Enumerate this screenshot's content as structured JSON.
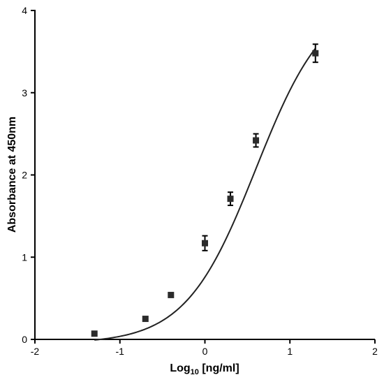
{
  "chart_data": {
    "type": "scatter",
    "title": "",
    "xlabel_main": "Log",
    "xlabel_sub": "10",
    "xlabel_rest": " [ng/ml]",
    "ylabel": "Absorbance at 450nm",
    "xlim": [
      -2,
      2
    ],
    "ylim": [
      0,
      4
    ],
    "x_ticks": [
      -2,
      -1,
      0,
      1,
      2
    ],
    "y_ticks": [
      0,
      1,
      2,
      3,
      4
    ],
    "x_tick_labels": [
      "-2",
      "-1",
      "0",
      "1",
      "2"
    ],
    "y_tick_labels": [
      "0",
      "1",
      "2",
      "3",
      "4"
    ],
    "grid": false,
    "points": [
      {
        "x": -1.3,
        "y": 0.07,
        "err": 0.0
      },
      {
        "x": -0.7,
        "y": 0.25,
        "err": 0.0
      },
      {
        "x": -0.4,
        "y": 0.54,
        "err": 0.0
      },
      {
        "x": 0.0,
        "y": 1.17,
        "err": 0.09
      },
      {
        "x": 0.3,
        "y": 1.71,
        "err": 0.08
      },
      {
        "x": 0.6,
        "y": 2.42,
        "err": 0.08
      },
      {
        "x": 1.3,
        "y": 3.48,
        "err": 0.11
      }
    ],
    "fit": {
      "model": "4PL",
      "bottom": -0.05,
      "top": 4.2,
      "log_ec50": 0.6,
      "hill": 1.05
    }
  }
}
